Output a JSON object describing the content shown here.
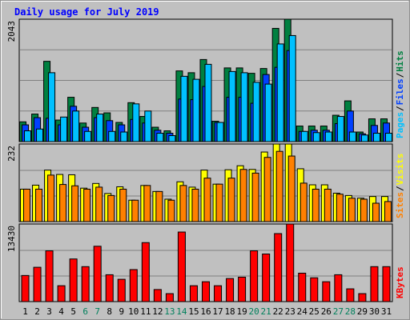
{
  "chart_data": {
    "title": "Daily usage for July 2019",
    "categories": [
      "1",
      "2",
      "3",
      "4",
      "5",
      "6",
      "7",
      "8",
      "9",
      "10",
      "11",
      "12",
      "13",
      "14",
      "15",
      "16",
      "17",
      "18",
      "19",
      "20",
      "21",
      "22",
      "23",
      "24",
      "25",
      "26",
      "27",
      "28",
      "29",
      "30",
      "31"
    ],
    "weekend_days": [
      "6",
      "7",
      "13",
      "14",
      "20",
      "21",
      "27",
      "28"
    ],
    "colors": {
      "background": "#c0c0c0",
      "title": "#0000ff",
      "hits": "#008040",
      "files": "#0040ff",
      "pages": "#00c0ff",
      "visits": "#ffff00",
      "sites": "#ff8000",
      "kbytes": "#ff0000",
      "weekend_label": "#00805c",
      "weekday_label": "#000000"
    },
    "panels": [
      {
        "type": "bar",
        "max_label": "2043",
        "ylim": [
          0,
          2043
        ],
        "legend": [
          {
            "name": "Pages",
            "color": "#00c0ff"
          },
          {
            "name": "Files",
            "color": "#0040ff"
          },
          {
            "name": "Hits",
            "color": "#008040"
          }
        ],
        "series": [
          {
            "name": "Hits",
            "values": [
              330,
              460,
              1340,
              360,
              740,
              310,
              570,
              480,
              320,
              650,
              420,
              240,
              180,
              1180,
              1150,
              1370,
              340,
              1230,
              1230,
              1140,
              1220,
              1890,
              2043,
              260,
              260,
              260,
              440,
              680,
              160,
              380,
              380
            ]
          },
          {
            "name": "Files",
            "values": [
              280,
              400,
              390,
              280,
              590,
              240,
              400,
              350,
              280,
              370,
              310,
              190,
              140,
              710,
              700,
              920,
              320,
              740,
              740,
              640,
              1120,
              1240,
              1520,
              170,
              190,
              190,
              300,
              510,
              130,
              270,
              310
            ]
          },
          {
            "name": "Pages",
            "values": [
              180,
              210,
              1150,
              410,
              510,
              170,
              460,
              170,
              160,
              630,
              510,
              140,
              100,
              1090,
              1040,
              1290,
              320,
              1170,
              1150,
              990,
              960,
              1630,
              1770,
              170,
              150,
              160,
              420,
              160,
              110,
              140,
              140
            ]
          }
        ]
      },
      {
        "type": "bar",
        "max_label": "232",
        "ylim": [
          0,
          232
        ],
        "legend": [
          {
            "name": "Sites",
            "color": "#ff8000"
          },
          {
            "name": "Visits",
            "color": "#ffff00"
          }
        ],
        "series": [
          {
            "name": "Visits",
            "values": [
              97,
              109,
              154,
              141,
              140,
              100,
              114,
              84,
              104,
              64,
              108,
              90,
              67,
              119,
              103,
              154,
              112,
              155,
              167,
              156,
              208,
              232,
              232,
              158,
              110,
              110,
              85,
              78,
              70,
              75,
              75
            ]
          },
          {
            "name": "Sites",
            "values": [
              97,
              97,
              139,
              111,
              107,
              97,
              103,
              78,
              97,
              64,
              108,
              90,
              64,
              108,
              97,
              130,
              112,
              130,
              156,
              145,
              192,
              210,
              196,
              115,
              97,
              97,
              82,
              70,
              67,
              55,
              60
            ]
          }
        ]
      },
      {
        "type": "bar",
        "max_label": "13430",
        "ylim": [
          0,
          13430
        ],
        "legend": [
          {
            "name": "KBytes",
            "color": "#ff0000"
          }
        ],
        "series": [
          {
            "name": "KBytes",
            "values": [
              4520,
              5940,
              8790,
              2750,
              7380,
              6050,
              9580,
              4650,
              3860,
              5540,
              10210,
              2090,
              1380,
              12040,
              2750,
              3440,
              2750,
              3990,
              4230,
              8790,
              8240,
              11770,
              13430,
              4920,
              4120,
              3440,
              4650,
              2210,
              1380,
              6050,
              6050
            ]
          }
        ]
      }
    ]
  }
}
